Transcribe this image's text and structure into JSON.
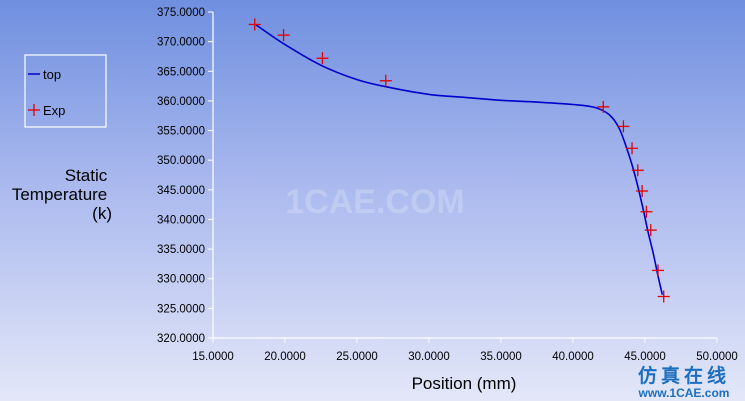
{
  "chart_data": {
    "type": "line",
    "xlabel": "Position (mm)",
    "ylabel_lines": [
      "Static",
      "Temperature",
      "(k)"
    ],
    "xlim": [
      15,
      50
    ],
    "ylim": [
      320,
      375
    ],
    "x_ticks": [
      "15.0000",
      "20.0000",
      "25.0000",
      "30.0000",
      "35.0000",
      "40.0000",
      "45.0000",
      "50.0000"
    ],
    "y_ticks": [
      "320.0000",
      "325.0000",
      "330.0000",
      "335.0000",
      "340.0000",
      "345.0000",
      "350.0000",
      "355.0000",
      "360.0000",
      "365.0000",
      "370.0000",
      "375.0000"
    ],
    "legend": {
      "placement": "left",
      "entries": [
        "top",
        "Exp"
      ]
    },
    "series": [
      {
        "name": "top",
        "style": "line",
        "color": "#0000cc",
        "x": [
          18.0,
          20.0,
          22.5,
          25.0,
          27.0,
          30.0,
          32.5,
          35.0,
          37.5,
          40.0,
          41.5,
          42.5,
          43.2,
          43.8,
          44.3,
          44.8,
          45.2,
          45.6,
          45.9,
          46.2
        ],
        "y": [
          372.8,
          369.5,
          366.0,
          363.6,
          362.4,
          361.1,
          360.6,
          360.1,
          359.8,
          359.4,
          358.9,
          357.7,
          355.4,
          351.5,
          347.5,
          342.5,
          338.0,
          334.0,
          330.5,
          327.3
        ]
      },
      {
        "name": "Exp",
        "style": "marker",
        "marker": "plus",
        "color": "#e00000",
        "x": [
          17.9,
          19.9,
          22.6,
          27.0,
          42.1,
          43.5,
          44.1,
          44.5,
          44.8,
          45.1,
          45.4,
          45.9,
          46.3
        ],
        "y": [
          372.9,
          371.1,
          367.2,
          363.4,
          359.0,
          355.7,
          352.0,
          348.3,
          344.8,
          341.3,
          338.2,
          331.4,
          327.0
        ]
      }
    ]
  },
  "watermark": {
    "text": "1CAE.COM"
  },
  "badge": {
    "chinese": "仿真在线",
    "url": "www.1CAE.com"
  }
}
